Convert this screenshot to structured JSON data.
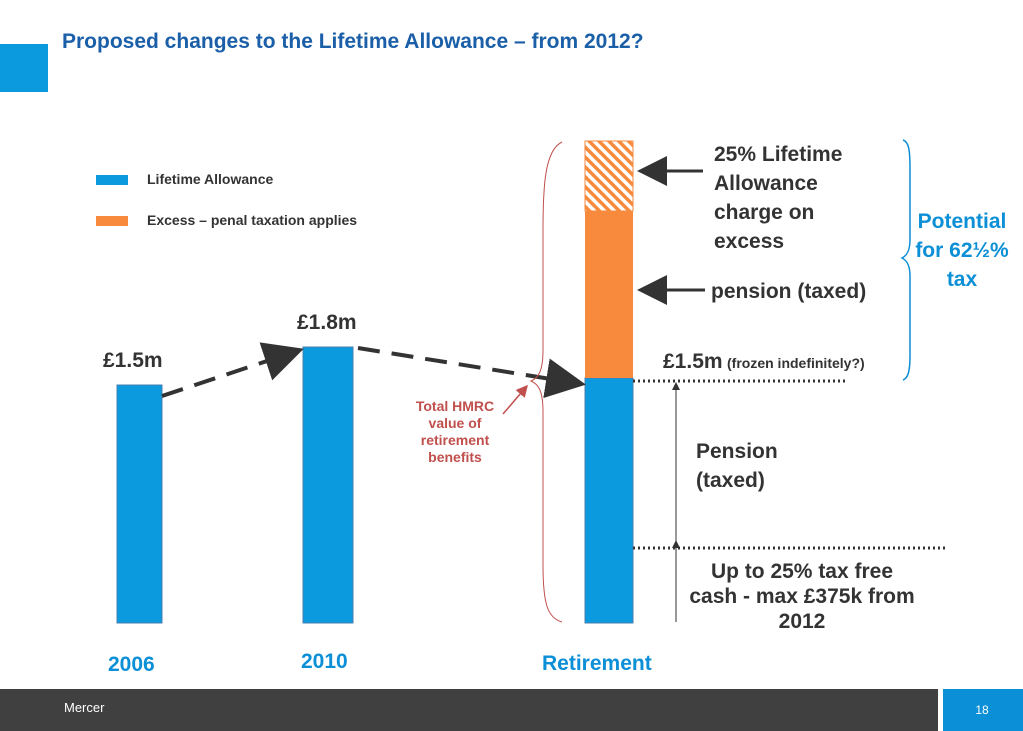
{
  "title": "Proposed changes to the Lifetime Allowance – from 2012?",
  "legend": [
    {
      "label": "Lifetime Allowance",
      "color": "#0b9ade"
    },
    {
      "label": "Excess – penal taxation applies",
      "color": "#f78a3c"
    }
  ],
  "bars": {
    "y2006": {
      "year": "2006",
      "value_label": "£1.5m",
      "value": 1.5
    },
    "y2010": {
      "year": "2010",
      "value_label": "£1.8m",
      "value": 1.8
    },
    "retirement": {
      "year": "Retirement",
      "value_label": "£1.5m",
      "value_note": "(frozen indefinitely?)",
      "value": 1.5
    }
  },
  "annotations": {
    "charge": "25% Lifetime Allowance charge on excess",
    "pension_excess": "pension (taxed)",
    "potential_tax": "Potential for 62½% tax",
    "pension": "Pension (taxed)",
    "tax_free": "Up to 25% tax free cash - max £375k from 2012",
    "hmrc": "Total HMRC value of retirement benefits"
  },
  "colors": {
    "blue": "#0b9ade",
    "orange": "#f78a3c",
    "title": "#1b5fa8",
    "footer": "#404040",
    "note": "#c0504d"
  },
  "footer": {
    "brand": "Mercer",
    "page": "18"
  }
}
